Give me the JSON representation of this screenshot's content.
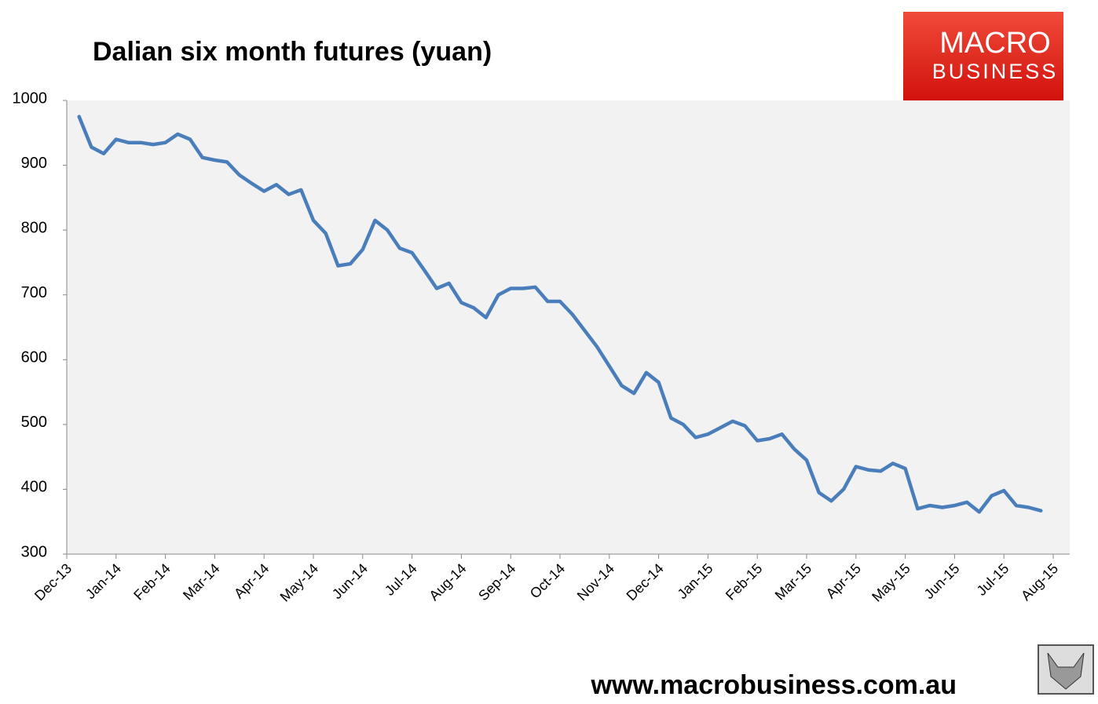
{
  "chart_data": {
    "type": "line",
    "title": "Dalian six month futures (yuan)",
    "categories": [
      "Dec-13",
      null,
      null,
      null,
      "Jan-14",
      null,
      null,
      null,
      "Feb-14",
      null,
      null,
      null,
      "Mar-14",
      null,
      null,
      null,
      "Apr-14",
      null,
      null,
      null,
      "May-14",
      null,
      null,
      null,
      "Jun-14",
      null,
      null,
      null,
      "Jul-14",
      null,
      null,
      null,
      "Aug-14",
      null,
      null,
      null,
      "Sep-14",
      null,
      null,
      null,
      "Oct-14",
      null,
      null,
      null,
      "Nov-14",
      null,
      null,
      null,
      "Dec-14",
      null,
      null,
      null,
      "Jan-15",
      null,
      null,
      null,
      "Feb-15",
      null,
      null,
      null,
      "Mar-15",
      null,
      null,
      null,
      "Apr-15",
      null,
      null,
      null,
      "May-15",
      null,
      null,
      null,
      "Jun-15",
      null,
      null,
      null,
      "Jul-15",
      null,
      null,
      null,
      "Aug-15"
    ],
    "values": [
      null,
      975,
      928,
      918,
      940,
      935,
      935,
      932,
      935,
      948,
      940,
      912,
      908,
      905,
      885,
      872,
      860,
      870,
      855,
      862,
      815,
      795,
      745,
      748,
      770,
      815,
      800,
      772,
      765,
      738,
      710,
      718,
      688,
      680,
      665,
      700,
      710,
      710,
      712,
      690,
      690,
      670,
      645,
      620,
      590,
      560,
      548,
      580,
      565,
      510,
      500,
      480,
      485,
      495,
      505,
      498,
      475,
      478,
      485,
      462,
      445,
      395,
      382,
      400,
      435,
      430,
      428,
      440,
      432,
      370,
      375,
      372,
      375,
      380,
      365,
      390,
      398,
      375,
      372,
      367,
      null
    ],
    "color": "#4a7ebb",
    "ylim": [
      300,
      1000
    ],
    "yticks": [
      300,
      400,
      500,
      600,
      700,
      800,
      900,
      1000
    ],
    "grid": false
  },
  "branding": {
    "logo_top": "MACRO",
    "logo_bottom": "BUSINESS",
    "url": "www.macrobusiness.com.au"
  }
}
